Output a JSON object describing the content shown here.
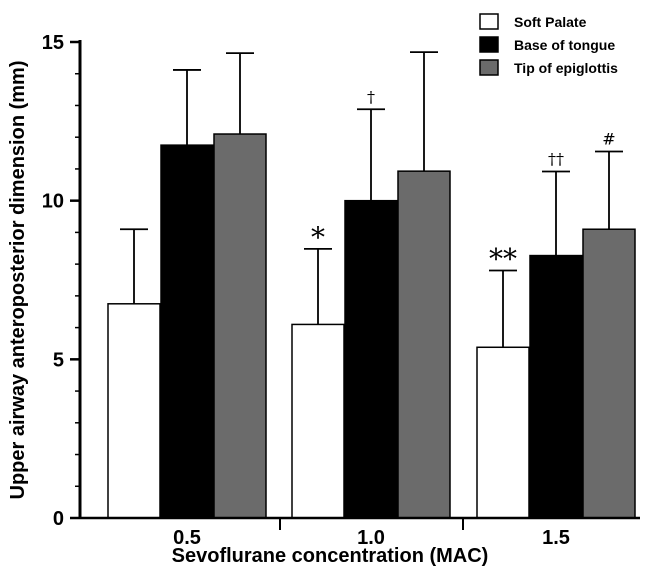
{
  "chart_data": {
    "type": "bar",
    "title": "",
    "xlabel": "Sevoflurane concentration (MAC)",
    "ylabel": "Upper airway anteroposterior dimension (mm)",
    "ylim": [
      0,
      15
    ],
    "yticks": [
      "0",
      "5",
      "10",
      "15"
    ],
    "categories": [
      "0.5",
      "1.0",
      "1.5"
    ],
    "series": [
      {
        "name": "Soft Palate",
        "color": "#ffffff",
        "values": [
          6.75,
          6.1,
          5.38
        ],
        "errors": [
          2.35,
          2.38,
          2.42
        ]
      },
      {
        "name": "Base of tongue",
        "color": "#000000",
        "values": [
          11.75,
          10.0,
          8.27
        ],
        "errors": [
          2.37,
          2.88,
          2.65
        ]
      },
      {
        "name": "Tip of epiglottis",
        "color": "#6b6b6b",
        "values": [
          12.1,
          10.93,
          9.1
        ],
        "errors": [
          2.55,
          3.75,
          2.45
        ]
      }
    ],
    "annotations": [
      {
        "category": 1,
        "series": 0,
        "text": "*"
      },
      {
        "category": 1,
        "series": 1,
        "text": "†"
      },
      {
        "category": 2,
        "series": 0,
        "text": "**"
      },
      {
        "category": 2,
        "series": 1,
        "text": "††"
      },
      {
        "category": 2,
        "series": 2,
        "text": "#"
      }
    ],
    "grid": false,
    "legend_position": "top-right"
  }
}
